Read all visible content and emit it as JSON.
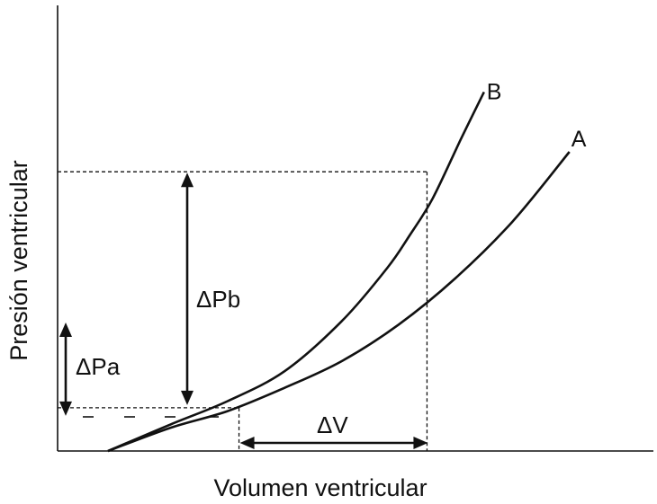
{
  "chart_data": {
    "type": "line",
    "title": "",
    "xlabel": "Volumen ventricular",
    "ylabel": "Presión ventricular",
    "xlim": [
      0,
      100
    ],
    "ylim": [
      0,
      100
    ],
    "grid": false,
    "legend": "none",
    "series": [
      {
        "name": "A",
        "color": "#111111",
        "points": [
          [
            9,
            0
          ],
          [
            20,
            7
          ],
          [
            30,
            12
          ],
          [
            40,
            19
          ],
          [
            50,
            27
          ],
          [
            60,
            38
          ],
          [
            70,
            52
          ],
          [
            80,
            69
          ],
          [
            90,
            90
          ]
        ]
      },
      {
        "name": "B",
        "color": "#111111",
        "points": [
          [
            9,
            0
          ],
          [
            20,
            8
          ],
          [
            30,
            15
          ],
          [
            40,
            24
          ],
          [
            50,
            39
          ],
          [
            58,
            55
          ],
          [
            62,
            65
          ],
          [
            66,
            76
          ],
          [
            71,
            94
          ],
          [
            75,
            108
          ]
        ]
      }
    ],
    "guides": {
      "ref_x_low": 32,
      "ref_x_high": 65,
      "ref_y_low": 13,
      "ref_y_high": 84
    },
    "annotations": {
      "delta_pb": "ΔPb",
      "delta_pa": "ΔPa",
      "delta_v": "ΔV"
    }
  }
}
